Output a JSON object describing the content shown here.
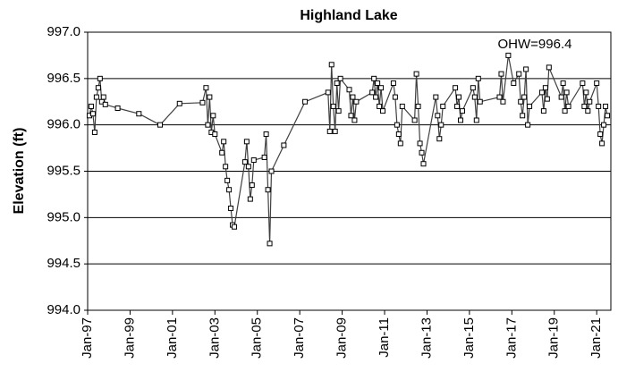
{
  "chart_data": {
    "type": "line",
    "title": "Highland Lake",
    "y_label": "Elevation (ft)",
    "annotation": "OHW=996.4",
    "x": [
      "1997-02",
      "1997-03",
      "1997-04",
      "1997-05",
      "1997-06",
      "1997-07",
      "1997-08",
      "1997-09",
      "1997-10",
      "1997-11",
      "1998-06",
      "1999-06",
      "2000-06",
      "2001-05",
      "2002-06",
      "2002-08",
      "2002-09",
      "2002-10",
      "2002-11",
      "2002-12",
      "2003-01",
      "2003-05",
      "2003-06",
      "2003-07",
      "2003-08",
      "2003-09",
      "2003-10",
      "2003-11",
      "2003-12",
      "2004-06",
      "2004-07",
      "2004-08",
      "2004-09",
      "2004-10",
      "2004-11",
      "2005-05",
      "2005-06",
      "2005-07",
      "2005-08",
      "2005-09",
      "2006-04",
      "2007-04",
      "2008-05",
      "2008-06",
      "2008-07",
      "2008-08",
      "2008-09",
      "2008-10",
      "2008-11",
      "2008-12",
      "2009-05",
      "2009-06",
      "2009-07",
      "2009-08",
      "2009-09",
      "2010-06",
      "2010-07",
      "2010-08",
      "2010-09",
      "2010-10",
      "2010-11",
      "2010-12",
      "2011-06",
      "2011-07",
      "2011-08",
      "2011-09",
      "2011-10",
      "2011-11",
      "2012-06",
      "2012-07",
      "2012-08",
      "2012-09",
      "2012-10",
      "2012-11",
      "2013-06",
      "2013-07",
      "2013-08",
      "2013-09",
      "2013-10",
      "2014-05",
      "2014-06",
      "2014-07",
      "2014-08",
      "2014-09",
      "2015-03",
      "2015-04",
      "2015-05",
      "2015-06",
      "2015-07",
      "2016-06",
      "2016-07",
      "2016-08",
      "2016-11",
      "2017-02",
      "2017-05",
      "2017-06",
      "2017-07",
      "2017-08",
      "2017-09",
      "2017-10",
      "2017-11",
      "2018-06",
      "2018-07",
      "2018-08",
      "2018-09",
      "2018-10",
      "2019-05",
      "2019-06",
      "2019-07",
      "2019-08",
      "2019-09",
      "2020-05",
      "2020-06",
      "2020-07",
      "2020-08",
      "2020-09",
      "2021-01",
      "2021-02",
      "2021-03",
      "2021-04",
      "2021-05",
      "2021-06",
      "2021-07"
    ],
    "values": [
      996.1,
      996.2,
      996.12,
      995.92,
      996.3,
      996.4,
      996.5,
      996.25,
      996.3,
      996.22,
      996.18,
      996.12,
      996.0,
      996.23,
      996.24,
      996.4,
      996.0,
      996.3,
      995.92,
      996.1,
      995.9,
      995.7,
      995.82,
      995.55,
      995.4,
      995.3,
      995.1,
      994.92,
      994.9,
      995.6,
      995.82,
      995.55,
      995.2,
      995.35,
      995.62,
      995.65,
      995.9,
      995.3,
      994.72,
      995.5,
      995.78,
      996.25,
      996.35,
      995.93,
      996.65,
      996.2,
      995.93,
      996.45,
      996.15,
      996.5,
      996.38,
      996.1,
      996.3,
      996.05,
      996.25,
      996.35,
      996.5,
      996.3,
      996.45,
      996.2,
      996.4,
      996.15,
      996.45,
      996.3,
      996.0,
      995.9,
      995.8,
      996.2,
      996.05,
      996.55,
      996.2,
      995.8,
      995.7,
      995.58,
      996.3,
      996.1,
      995.85,
      996.0,
      996.2,
      996.4,
      996.2,
      996.3,
      996.05,
      996.15,
      996.4,
      996.3,
      996.05,
      996.5,
      996.25,
      996.3,
      996.55,
      996.25,
      996.75,
      996.45,
      996.55,
      996.25,
      996.1,
      996.3,
      996.6,
      996.0,
      996.2,
      996.35,
      996.15,
      996.4,
      996.28,
      996.62,
      996.3,
      996.45,
      996.15,
      996.35,
      996.2,
      996.45,
      996.2,
      996.35,
      996.15,
      996.25,
      996.45,
      996.2,
      995.9,
      995.8,
      996.0,
      996.2,
      996.1
    ],
    "color": "#404040",
    "xlim": [
      "1997-01",
      "2021-09"
    ],
    "xticks": [
      {
        "value": "1997-01",
        "label": "Jan-97"
      },
      {
        "value": "1999-01",
        "label": "Jan-99"
      },
      {
        "value": "2001-01",
        "label": "Jan-01"
      },
      {
        "value": "2003-01",
        "label": "Jan-03"
      },
      {
        "value": "2005-01",
        "label": "Jan-05"
      },
      {
        "value": "2007-01",
        "label": "Jan-07"
      },
      {
        "value": "2009-01",
        "label": "Jan-09"
      },
      {
        "value": "2011-01",
        "label": "Jan-11"
      },
      {
        "value": "2013-01",
        "label": "Jan-13"
      },
      {
        "value": "2015-01",
        "label": "Jan-15"
      },
      {
        "value": "2017-01",
        "label": "Jan-17"
      },
      {
        "value": "2019-01",
        "label": "Jan-19"
      },
      {
        "value": "2021-01",
        "label": "Jan-21"
      }
    ],
    "ylim": [
      994,
      997
    ],
    "yticks": [
      {
        "value": 994,
        "label": "994.0"
      },
      {
        "value": 994.5,
        "label": "994.5"
      },
      {
        "value": 995,
        "label": "995.0"
      },
      {
        "value": 995.5,
        "label": "995.5"
      },
      {
        "value": 996,
        "label": "996.0"
      },
      {
        "value": 996.5,
        "label": "996.5"
      },
      {
        "value": 997,
        "label": "997.0"
      }
    ],
    "grid": true
  }
}
